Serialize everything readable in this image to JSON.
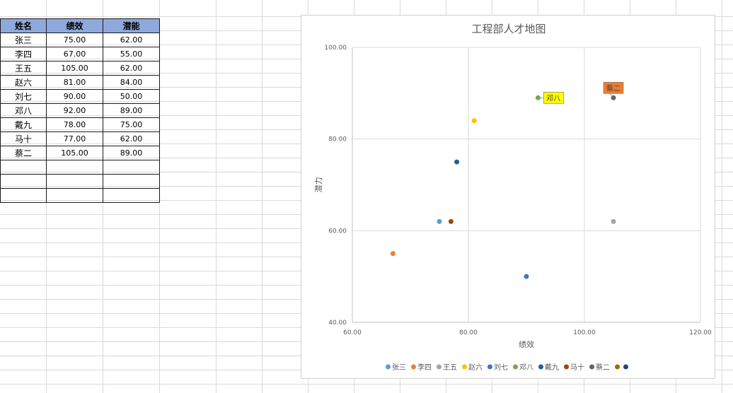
{
  "sheet": {
    "headers": [
      "姓名",
      "绩效",
      "潜能"
    ],
    "rows": [
      [
        "张三",
        "75.00",
        "62.00"
      ],
      [
        "李四",
        "67.00",
        "55.00"
      ],
      [
        "王五",
        "105.00",
        "62.00"
      ],
      [
        "赵六",
        "81.00",
        "84.00"
      ],
      [
        "刘七",
        "90.00",
        "50.00"
      ],
      [
        "邓八",
        "92.00",
        "89.00"
      ],
      [
        "戴九",
        "78.00",
        "75.00"
      ],
      [
        "马十",
        "77.00",
        "62.00"
      ],
      [
        "蔡二",
        "105.00",
        "89.00"
      ],
      [
        "",
        "",
        ""
      ],
      [
        "",
        "",
        ""
      ],
      [
        "",
        "",
        ""
      ]
    ]
  },
  "chart_data": {
    "type": "scatter",
    "title": "工程部人才地图",
    "xlabel": "绩效",
    "ylabel": "潜力",
    "xlim": [
      60,
      120
    ],
    "ylim": [
      40,
      100
    ],
    "xticks": [
      "60.00",
      "80.00",
      "100.00",
      "120.00"
    ],
    "yticks": [
      "40.00",
      "60.00",
      "80.00",
      "100.00"
    ],
    "grid": true,
    "legend_position": "bottom",
    "series": [
      {
        "name": "张三",
        "color": "#5b9bd5",
        "x": 75,
        "y": 62
      },
      {
        "name": "李四",
        "color": "#ed7d31",
        "x": 67,
        "y": 55
      },
      {
        "name": "王五",
        "color": "#a5a5a5",
        "x": 105,
        "y": 62
      },
      {
        "name": "赵六",
        "color": "#ffc000",
        "x": 81,
        "y": 84
      },
      {
        "name": "刘七",
        "color": "#4472c4",
        "x": 90,
        "y": 50
      },
      {
        "name": "邓八",
        "color": "#70ad47",
        "x": 92,
        "y": 89
      },
      {
        "name": "戴九",
        "color": "#255e91",
        "x": 78,
        "y": 75
      },
      {
        "name": "马十",
        "color": "#9e480e",
        "x": 77,
        "y": 62
      },
      {
        "name": "蔡二",
        "color": "#636363",
        "x": 105,
        "y": 89
      },
      {
        "name": "",
        "color": "#997300",
        "x": null,
        "y": null
      },
      {
        "name": "",
        "color": "#264478",
        "x": null,
        "y": null
      }
    ],
    "annotations": [
      {
        "text": "邓八",
        "series": "邓八",
        "background": "#ffff00"
      },
      {
        "text": "蔡二",
        "series": "蔡二",
        "background": "#ed7d31"
      }
    ]
  }
}
